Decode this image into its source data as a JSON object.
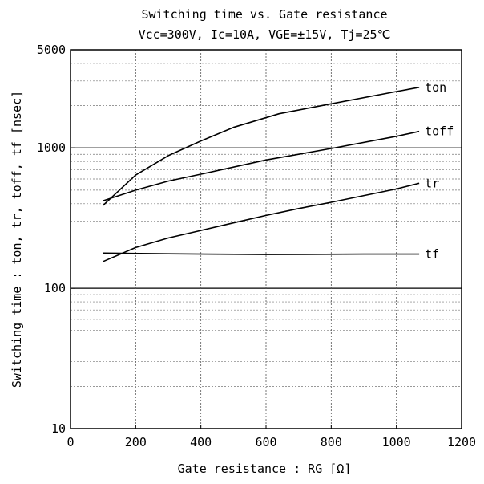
{
  "chart_data": {
    "type": "line",
    "title": "Switching time vs. Gate resistance",
    "subtitle": "Vcc=300V, Ic=10A, VGE=±15V, Tj=25℃",
    "xlabel": "Gate resistance : RG [Ω]",
    "ylabel": "Switching time : ton, tr, toff, tf [nsec]",
    "xlim": [
      0,
      1200
    ],
    "ylim": [
      10,
      5000
    ],
    "yscale": "log",
    "grid": true,
    "x_ticks": [
      "0",
      "200",
      "400",
      "600",
      "800",
      "1000",
      "1200"
    ],
    "y_ticks": [
      "10",
      "100",
      "1000",
      "5000"
    ],
    "series": [
      {
        "name": "ton",
        "x": [
          100,
          200,
          300,
          400,
          500,
          640,
          800,
          1000,
          1070
        ],
        "y": [
          390,
          640,
          880,
          1120,
          1400,
          1750,
          2060,
          2520,
          2700
        ]
      },
      {
        "name": "toff",
        "x": [
          100,
          200,
          300,
          400,
          600,
          800,
          1000,
          1070
        ],
        "y": [
          420,
          500,
          580,
          650,
          820,
          990,
          1210,
          1310
        ]
      },
      {
        "name": "tr",
        "x": [
          100,
          200,
          300,
          400,
          500,
          600,
          700,
          800,
          1000,
          1070
        ],
        "y": [
          155,
          195,
          228,
          258,
          292,
          330,
          370,
          410,
          510,
          560
        ]
      },
      {
        "name": "tf",
        "x": [
          100,
          300,
          600,
          900,
          1070
        ],
        "y": [
          178,
          176,
          174,
          175,
          175
        ]
      }
    ]
  }
}
